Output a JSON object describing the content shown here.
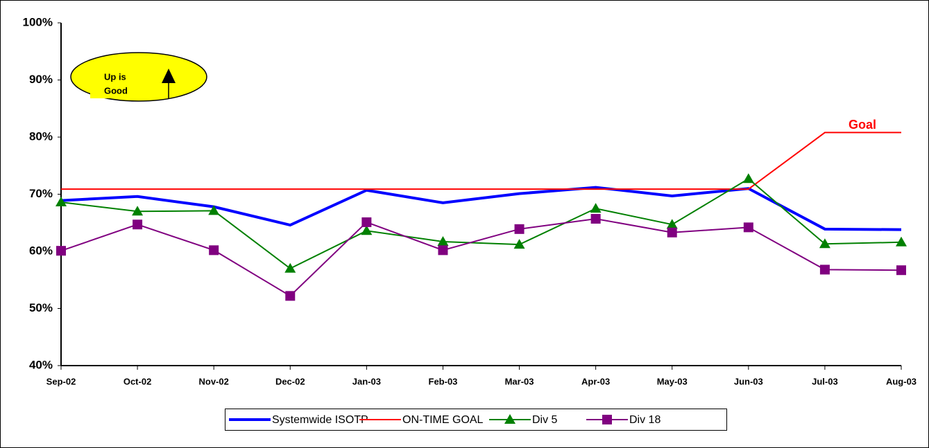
{
  "chart_data": {
    "type": "line",
    "categories": [
      "Sep-02",
      "Oct-02",
      "Nov-02",
      "Dec-02",
      "Jan-03",
      "Feb-03",
      "Mar-03",
      "Apr-03",
      "May-03",
      "Jun-03",
      "Jul-03",
      "Aug-03"
    ],
    "series": [
      {
        "name": "Systemwide ISOTP",
        "color": "#0000ff",
        "marker": "none",
        "width": 4,
        "values": [
          68.9,
          69.6,
          67.8,
          64.6,
          70.7,
          68.5,
          70.1,
          71.2,
          69.7,
          71.0,
          63.9,
          63.8
        ]
      },
      {
        "name": "ON-TIME GOAL",
        "color": "#ff0000",
        "marker": "none",
        "width": 2,
        "values": [
          70.9,
          70.9,
          70.9,
          70.9,
          70.9,
          70.9,
          70.9,
          70.9,
          70.9,
          70.9,
          80.8,
          80.8
        ]
      },
      {
        "name": "Div 5",
        "color": "#008000",
        "marker": "triangle",
        "width": 2,
        "values": [
          68.6,
          67.0,
          67.1,
          57.0,
          63.6,
          61.7,
          61.2,
          67.5,
          64.7,
          72.7,
          61.3,
          61.6
        ]
      },
      {
        "name": "Div 18",
        "color": "#800080",
        "marker": "square",
        "width": 2,
        "values": [
          60.1,
          64.7,
          60.2,
          52.2,
          65.1,
          60.2,
          63.9,
          65.7,
          63.3,
          64.2,
          56.8,
          56.7
        ]
      }
    ],
    "ylim": [
      40,
      100
    ],
    "yticks": [
      {
        "value": 40,
        "label": "40%"
      },
      {
        "value": 50,
        "label": "50%"
      },
      {
        "value": 60,
        "label": "60%"
      },
      {
        "value": 70,
        "label": "70%"
      },
      {
        "value": 80,
        "label": "80%"
      },
      {
        "value": 90,
        "label": "90%"
      },
      {
        "value": 100,
        "label": "100%"
      }
    ],
    "legend": "bottom",
    "badge": [
      "Up is",
      "Good"
    ],
    "goal_label": "Goal"
  }
}
